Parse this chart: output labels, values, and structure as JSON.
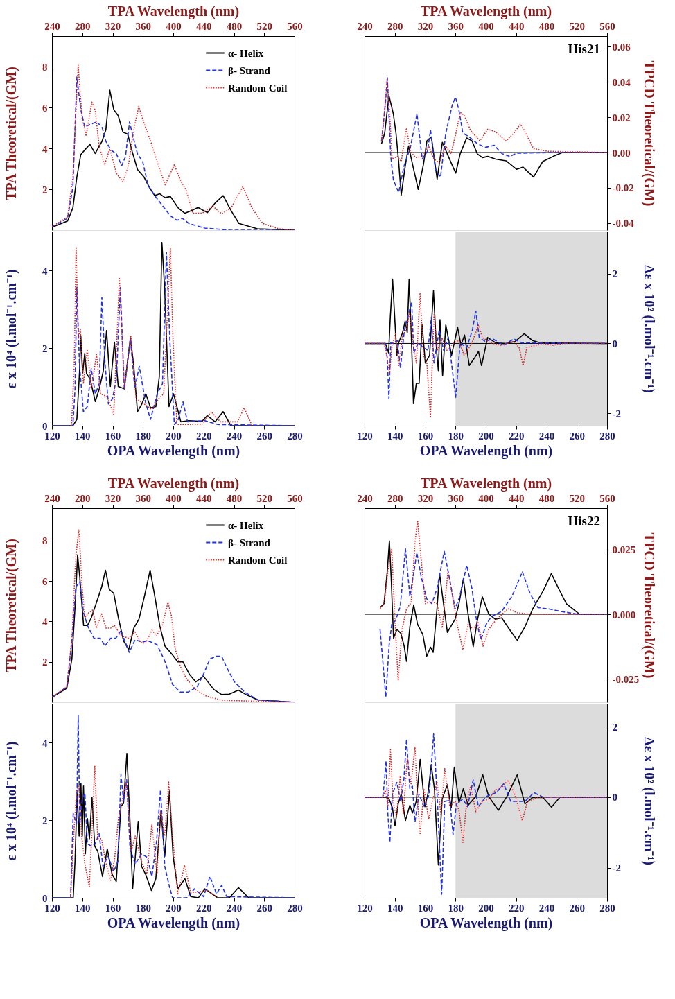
{
  "chart_data": [
    {
      "type": "line",
      "xlabel": "TPA Wavelength (nm)",
      "xlim": [
        240,
        560
      ],
      "xticks": [
        240,
        280,
        320,
        360,
        400,
        440,
        480,
        520,
        560
      ],
      "ylabel": "TPA Theoretical/(GM)",
      "ylim": [
        0,
        9.5
      ],
      "yticks": [
        2,
        4,
        6,
        8
      ],
      "legend": "top right",
      "series": [
        {
          "name": "α- Helix",
          "color": "#000000",
          "line_style": "solid",
          "x": [
            240,
            260.6,
            267.6,
            272.8,
            278,
            285,
            290,
            297,
            306,
            311,
            316.3,
            321.5,
            327.4,
            333.6,
            339.9,
            345.8,
            352.8,
            361.4,
            368.4,
            375.4,
            382.3,
            389.3,
            396.2,
            406.7,
            415.3,
            424,
            432.7,
            444.9,
            455.3,
            465.8,
            476.2,
            486.6,
            511,
            560
          ],
          "values": [
            0.14,
            0.45,
            1.1,
            2.6,
            3.7,
            4.0,
            4.2,
            3.75,
            4.35,
            4.9,
            6.85,
            5.9,
            5.6,
            4.8,
            4.7,
            3.85,
            2.97,
            2.6,
            2.1,
            1.7,
            1.78,
            1.59,
            1.65,
            1.08,
            0.83,
            0.96,
            1.11,
            0.86,
            1.33,
            1.69,
            0.96,
            0.33,
            0.07,
            0
          ]
        },
        {
          "name": "β- Strand",
          "color": "#2233dd",
          "line_style": "dashed",
          "x": [
            240,
            260.6,
            267.6,
            272.8,
            278,
            283.2,
            292,
            299,
            306,
            311,
            318,
            325,
            332,
            337,
            342.3,
            347.5,
            352.8,
            359.7,
            366.7,
            375.4,
            385.8,
            396.2,
            405,
            411.9,
            420.6,
            441.4,
            476,
            560
          ],
          "values": [
            0.17,
            0.58,
            2.1,
            7.5,
            5.9,
            5.05,
            5.2,
            5.3,
            5.05,
            4.35,
            3.92,
            3.73,
            3.16,
            3.6,
            5.3,
            4.5,
            3.73,
            3.35,
            2.2,
            1.7,
            1.2,
            0.7,
            0.48,
            0.58,
            0.33,
            0.1,
            0,
            0
          ]
        },
        {
          "name": "Random Coil",
          "color": "#dd2222",
          "line_style": "dotted",
          "x": [
            240,
            260.6,
            267.6,
            274.5,
            279.7,
            285,
            292.6,
            297,
            302.3,
            309.3,
            316.3,
            325,
            333.6,
            340.6,
            347.5,
            354.5,
            361.4,
            370.1,
            378.8,
            389.3,
            401.4,
            410.1,
            417,
            425.8,
            438,
            451.9,
            464,
            476.2,
            491.8,
            504,
            518,
            538.8,
            560
          ],
          "values": [
            0.17,
            0.64,
            2.6,
            8.07,
            5.5,
            4.6,
            6.27,
            5.87,
            4.1,
            3.2,
            3.98,
            2.78,
            2.37,
            3.1,
            4.86,
            6.06,
            5.24,
            4.36,
            3.35,
            2.22,
            3.2,
            2.4,
            1.96,
            0.83,
            0.83,
            1.18,
            0.8,
            1.08,
            2.13,
            1.08,
            0.33,
            0.07,
            0
          ]
        }
      ]
    },
    {
      "type": "line",
      "xlabel": "TPA Wavelength (nm)",
      "xlim": [
        240,
        560
      ],
      "xticks": [
        240,
        280,
        320,
        360,
        400,
        440,
        480,
        520,
        560
      ],
      "ylabel": "TPCD Theoretical/(GM)",
      "ylim": [
        -0.044,
        0.066
      ],
      "yticks": [
        {
          "value": -0.04,
          "label": "-0.04"
        },
        {
          "value": -0.02,
          "label": "-0.02"
        },
        {
          "value": 0,
          "label": "0.00"
        },
        {
          "value": 0.02,
          "label": "0.02"
        },
        {
          "value": 0.04,
          "label": "0.04"
        },
        {
          "value": 0.06,
          "label": "0.06"
        }
      ],
      "annotations": [
        "His21"
      ],
      "ref_lines": [
        {
          "axis": "y",
          "value": 0,
          "color": "#000000"
        }
      ],
      "series": [
        {
          "color": "#000000",
          "line_style": "solid",
          "x": [
            262.5,
            266.6,
            272.2,
            278,
            281.5,
            285,
            288.4,
            293.6,
            298.1,
            304,
            310.9,
            317.8,
            322.3,
            328.2,
            335.8,
            342.7,
            350.6,
            360.3,
            366.2,
            374.8,
            381.8,
            388.7,
            395.6,
            402.5,
            412.9,
            426.7,
            440.5,
            449.2,
            463,
            475.1,
            488.9,
            501,
            560
          ],
          "values": [
            0.0051,
            0.011,
            0.0322,
            0.0219,
            0.011,
            -0.0051,
            -0.0241,
            -0.008,
            0.0037,
            -0.008,
            -0.0209,
            -0.0066,
            0.0066,
            0.0088,
            -0.0151,
            0.0058,
            -0.0022,
            -0.0117,
            -0.0007,
            0.0083,
            0.0066,
            -0.0007,
            -0.0029,
            -0.0022,
            -0.0037,
            -0.0047,
            -0.0095,
            -0.0083,
            -0.0139,
            -0.0051,
            -0.0022,
            0,
            0
          ]
        },
        {
          "color": "#2233dd",
          "line_style": "dashed",
          "x": [
            262.5,
            267.7,
            270.1,
            274.6,
            278,
            285,
            291.9,
            300.5,
            309.2,
            316.1,
            323,
            327.1,
            333.4,
            340.3,
            347.2,
            355.8,
            360,
            364.5,
            369.7,
            378.3,
            388.7,
            399.1,
            411.1,
            421.5,
            431.9,
            440.5,
            492.4,
            560
          ],
          "values": [
            0.0066,
            0.0285,
            0.0424,
            -0.0022,
            -0.0154,
            -0.0227,
            -0.008,
            0.0029,
            0.0219,
            -0.0037,
            0.0007,
            0.0127,
            -0.0095,
            -0.0139,
            0.011,
            0.027,
            0.0314,
            0.0241,
            0.011,
            0.0088,
            0.0051,
            0.0029,
            0.0041,
            -0.0007,
            -0.0022,
            -0.0004,
            0,
            0
          ]
        },
        {
          "color": "#dd2222",
          "line_style": "dotted",
          "x": [
            262.5,
            266.6,
            269.7,
            272.9,
            276.3,
            283.2,
            288.4,
            295.3,
            300.5,
            307.4,
            316.1,
            324.7,
            331.6,
            338.5,
            347.2,
            354.1,
            361,
            366.2,
            371.4,
            380,
            392.1,
            402.5,
            412.9,
            426.7,
            437.1,
            445.7,
            450.9,
            463,
            482,
            560
          ],
          "values": [
            0.0066,
            0.0241,
            0.0417,
            0.0241,
            -0.0037,
            -0.0022,
            -0.0051,
            0.0139,
            0.0007,
            -0.0029,
            -0.0022,
            0.0037,
            -0.0037,
            -0.0058,
            0.0037,
            -0.0007,
            0.0117,
            0.0227,
            0.0212,
            0.0124,
            0.0066,
            0.0132,
            0.0117,
            0.0066,
            0.011,
            0.0161,
            0.0124,
            0.0022,
            0.0007,
            0
          ]
        }
      ]
    },
    {
      "type": "line",
      "xlabel": "OPA Wavelength (nm)",
      "xlim": [
        120,
        280
      ],
      "xticks": [
        120,
        140,
        160,
        180,
        200,
        220,
        240,
        260,
        280
      ],
      "ylabel": "ε x 10⁴ (l.mol⁻¹.cm⁻¹)",
      "ylim": [
        0,
        5
      ],
      "yticks": [
        0,
        2,
        4
      ],
      "series": [
        {
          "color": "#000000",
          "line_style": "solid",
          "x": [
            120,
            133.8,
            136.4,
            138.1,
            139,
            140.2,
            141.6,
            142.8,
            145.1,
            148.6,
            151.2,
            153.8,
            156,
            158.5,
            161.2,
            163.7,
            167.7,
            171.7,
            173.8,
            176.4,
            179.3,
            181.9,
            185,
            188.5,
            190.8,
            192.5,
            194.3,
            197.2,
            200.2,
            205,
            210.3,
            219,
            222.4,
            227.6,
            232.9,
            238,
            280
          ],
          "values": [
            0,
            0,
            0.16,
            1.34,
            2.32,
            1.34,
            1.86,
            1.34,
            1.21,
            0.62,
            0.95,
            1.4,
            2.45,
            1.01,
            2.15,
            1.01,
            0.95,
            2.25,
            1.6,
            0.36,
            0.56,
            0.82,
            0.46,
            0.49,
            1.27,
            4.72,
            3.56,
            0.49,
            0.82,
            0.1,
            0.13,
            0.11,
            0.26,
            0.1,
            0.36,
            0,
            0
          ]
        },
        {
          "color": "#2233dd",
          "line_style": "dashed",
          "x": [
            120,
            133.8,
            135.2,
            136.4,
            138.1,
            140.7,
            143.3,
            145.9,
            148.6,
            151.2,
            152.9,
            155,
            157.2,
            159.9,
            162.5,
            165.1,
            167.7,
            171.7,
            174.6,
            177.6,
            181.6,
            185,
            189.4,
            192.9,
            195.5,
            197.7,
            200.7,
            203.3,
            206.4,
            209.4,
            220.7,
            229.4,
            280
          ],
          "values": [
            0,
            0,
            0.95,
            3.56,
            1.6,
            0.36,
            0.49,
            1.47,
            0.82,
            1.08,
            3.3,
            1.6,
            0.56,
            0.69,
            1.21,
            3.56,
            0.95,
            2.25,
            0.95,
            1.53,
            0.62,
            0.16,
            0.82,
            1.08,
            4.47,
            2.25,
            0.03,
            0.16,
            0.62,
            0.1,
            0.13,
            0.03,
            0
          ]
        },
        {
          "color": "#dd2222",
          "line_style": "dotted",
          "x": [
            132.9,
            134.7,
            135.9,
            137.3,
            138.7,
            140.7,
            143.3,
            145.9,
            149.4,
            152,
            156.4,
            160.7,
            164.5,
            167.7,
            172,
            175.5,
            180.7,
            185.9,
            190.3,
            193.7,
            198.1,
            199.8,
            202.4,
            218.9,
            225,
            231.1,
            242.4,
            246.8,
            252
          ],
          "values": [
            0,
            1.6,
            4.57,
            2.25,
            2.48,
            1.08,
            1.96,
            0.95,
            1.83,
            0.82,
            0.75,
            0.29,
            3.79,
            0.95,
            2.32,
            0.69,
            0.56,
            0.42,
            0.69,
            0.82,
            4.57,
            2.25,
            0.03,
            0.03,
            0.36,
            0.1,
            0.1,
            0.46,
            0
          ]
        }
      ]
    },
    {
      "type": "line",
      "xlabel": "OPA Wavelength (nm)",
      "xlim": [
        120,
        280
      ],
      "xticks": [
        120,
        140,
        160,
        180,
        200,
        220,
        240,
        260,
        280
      ],
      "ylabel": "Δε x 10² (l.mol⁻¹.cm⁻¹)",
      "ylim": [
        -2.35,
        3.2
      ],
      "yticks": [
        -2,
        0,
        2
      ],
      "bands": [
        {
          "axis": "x",
          "from": 180,
          "to": 280,
          "color": "#dcdcdc"
        }
      ],
      "ref_lines": [
        {
          "axis": "y",
          "value": 0,
          "color": "#000000"
        }
      ],
      "series": [
        {
          "color": "#000000",
          "line_style": "solid",
          "x": [
            120,
            133.8,
            135.9,
            137,
            138.5,
            139.9,
            141.3,
            142.5,
            145.1,
            146.8,
            148.2,
            149.4,
            150.8,
            152.3,
            154.2,
            156,
            158,
            160.1,
            162.9,
            165.5,
            167.5,
            168.7,
            169.8,
            171.5,
            173.6,
            177.4,
            181.4,
            183.6,
            186,
            189.1,
            192.6,
            195.2,
            197.2,
            201.2,
            206.4,
            213.3,
            219.4,
            225.4,
            230.6,
            235.8,
            280
          ],
          "values": [
            0,
            0,
            -0.27,
            0.75,
            1.84,
            0.75,
            -0.34,
            0.02,
            0.31,
            0.64,
            0.31,
            1.84,
            0.31,
            -1.72,
            -1.14,
            -1.14,
            0.53,
            -0.56,
            -0.34,
            1.51,
            -0.2,
            -0.78,
            0.68,
            -0.92,
            0.53,
            -0.34,
            0.46,
            -0.05,
            0.24,
            -0.63,
            -0.41,
            -0.23,
            -0.63,
            0.17,
            0.02,
            0,
            0.06,
            0.28,
            0.09,
            0.02,
            0
          ]
        },
        {
          "color": "#2233dd",
          "line_style": "dashed",
          "x": [
            120,
            133.8,
            135,
            136.1,
            137.3,
            139,
            141.6,
            143.7,
            146.3,
            148.5,
            151.1,
            152.5,
            155.4,
            158.9,
            161.8,
            164.1,
            165.8,
            169.3,
            172.2,
            175.3,
            178.4,
            180.1,
            183.1,
            187.4,
            191.2,
            193.4,
            195.7,
            199.5,
            204.7,
            211.6,
            218.5,
            223.7,
            280
          ],
          "values": [
            0,
            0,
            -0.41,
            -1.58,
            0.02,
            0,
            0.09,
            -0.71,
            0.39,
            0.75,
            1.19,
            -0.27,
            0.02,
            -0.12,
            -0.2,
            0.75,
            -0.56,
            0.39,
            -0.2,
            0.17,
            -0.92,
            -1.54,
            0.02,
            -0.12,
            0.39,
            0.93,
            0.17,
            0.06,
            0.13,
            -0.05,
            0.13,
            0.02,
            0
          ]
        },
        {
          "color": "#dd2222",
          "line_style": "dotted",
          "x": [
            120,
            133,
            134.7,
            136.4,
            138.2,
            140.4,
            142.5,
            145.1,
            147.7,
            149.7,
            152,
            154.2,
            156.6,
            158.9,
            161.1,
            163.5,
            165.8,
            168,
            171,
            174.4,
            178.8,
            182.2,
            185.7,
            190.9,
            195.2,
            197.8,
            202.9,
            209.9,
            218.5,
            222,
            224.6,
            227.1,
            237.5,
            244.4,
            251.3,
            280
          ],
          "values": [
            0,
            0,
            -0.34,
            -0.85,
            -0.05,
            0.28,
            -0.63,
            0.24,
            0.39,
            0.89,
            0.02,
            -0.56,
            1.44,
            -0.34,
            -0.56,
            -2.09,
            0.82,
            -0.2,
            0.17,
            -0.2,
            0.02,
            0.09,
            -0.34,
            0.02,
            0.53,
            0.17,
            0.02,
            -0.05,
            0.06,
            -0.12,
            -0.63,
            -0.12,
            0,
            -0.05,
            0,
            0
          ]
        }
      ]
    },
    {
      "type": "line",
      "xlabel": "TPA Wavelength (nm)",
      "xlim": [
        240,
        560
      ],
      "xticks": [
        240,
        280,
        320,
        360,
        400,
        440,
        480,
        520,
        560
      ],
      "ylabel": "TPA Theoretical/(GM)",
      "ylim": [
        0,
        9.6
      ],
      "yticks": [
        2,
        4,
        6,
        8
      ],
      "legend": "top right",
      "series": [
        {
          "name": "α- Helix",
          "color": "#000000",
          "line_style": "solid",
          "x": [
            240,
            259.5,
            266.3,
            270.8,
            273.8,
            276.6,
            281.7,
            286.8,
            291.9,
            298.7,
            305.5,
            310.6,
            315.7,
            321.5,
            327.6,
            334.4,
            341.2,
            348,
            354.8,
            361.7,
            369.5,
            375.3,
            382.1,
            388.9,
            399.1,
            405.9,
            412.7,
            421.2,
            429.7,
            439.9,
            453.6,
            463.8,
            474,
            485.9,
            496.1,
            511.4,
            560
          ],
          "values": [
            0.25,
            0.69,
            2.15,
            4.94,
            7.29,
            6.21,
            3.8,
            3.8,
            4.18,
            4.94,
            5.7,
            6.53,
            5.58,
            5.39,
            4.18,
            3.04,
            2.6,
            3.67,
            4.12,
            5.2,
            6.53,
            5.32,
            3.8,
            2.79,
            2.34,
            2,
            2,
            1.39,
            1.01,
            1.29,
            0.63,
            0.38,
            0.4,
            0.6,
            0.38,
            0.12,
            0
          ]
        },
        {
          "name": "β- Strand",
          "color": "#2233dd",
          "line_style": "dashed",
          "x": [
            240,
            259.5,
            266.3,
            271.4,
            276.6,
            281.7,
            286.8,
            295.3,
            303.8,
            309.9,
            317.4,
            324.2,
            331,
            336.1,
            341.9,
            349.7,
            358.3,
            366.8,
            378.7,
            388.9,
            399.1,
            409.3,
            419.5,
            431.4,
            439.9,
            448.5,
            457,
            463.8,
            470.6,
            480.8,
            494.4,
            511.4,
            560
          ],
          "values": [
            0.25,
            0.76,
            3.04,
            5.7,
            5.96,
            4.43,
            3.8,
            3.17,
            3.17,
            2.79,
            3.17,
            3.17,
            3.55,
            3.04,
            2.47,
            3.1,
            2.98,
            3.04,
            2.85,
            2.03,
            0.88,
            0.5,
            0.5,
            0.76,
            1.39,
            2.15,
            2.28,
            2.28,
            1.71,
            1.01,
            0.5,
            0.12,
            0
          ]
        },
        {
          "name": "Random Coil",
          "color": "#dd2222",
          "line_style": "dotted",
          "x": [
            240,
            259.5,
            266.3,
            271.4,
            275.5,
            280,
            283.4,
            288.5,
            293.6,
            298.7,
            305.5,
            311.3,
            317.4,
            322.5,
            331,
            341.2,
            349.7,
            356.5,
            363.4,
            371.9,
            378,
            385.5,
            393,
            397.4,
            402.5,
            409.3,
            417.8,
            429.7,
            443.4,
            463.8,
            560
          ],
          "values": [
            0.25,
            0.76,
            3.17,
            7.22,
            8.53,
            5.58,
            4.18,
            4.43,
            4.56,
            3.67,
            4.37,
            3.67,
            3.67,
            3.8,
            3.29,
            3.17,
            3.48,
            2.98,
            2.91,
            3.57,
            3.29,
            3.8,
            4.94,
            4.31,
            2.66,
            1.77,
            1.14,
            0.63,
            0.31,
            0.1,
            0
          ]
        }
      ]
    },
    {
      "type": "line",
      "xlabel": "TPA Wavelength (nm)",
      "xlim": [
        240,
        560
      ],
      "xticks": [
        240,
        280,
        320,
        360,
        400,
        440,
        480,
        520,
        560
      ],
      "ylabel": "TPCD Theoretical/(GM)",
      "ylim": [
        -0.034,
        0.041
      ],
      "yticks": [
        {
          "value": -0.025,
          "label": "-0.025"
        },
        {
          "value": 0,
          "label": "0.000"
        },
        {
          "value": 0.025,
          "label": "0.025"
        }
      ],
      "annotations": [
        "His22"
      ],
      "ref_lines": [
        {
          "axis": "y",
          "value": 0,
          "color": "#000000"
        }
      ],
      "series": [
        {
          "color": "#000000",
          "line_style": "solid",
          "x": [
            260.5,
            265.7,
            270.1,
            272.8,
            275.2,
            278.3,
            282.7,
            287.8,
            292.3,
            295.4,
            299.8,
            304.9,
            310,
            316.9,
            322,
            327.1,
            330.5,
            335.6,
            339,
            344.2,
            349.3,
            359.5,
            364.6,
            370.4,
            376.6,
            383.4,
            388.5,
            395.4,
            403.9,
            412.4,
            420.9,
            431.2,
            441.4,
            451.7,
            461.9,
            475.6,
            486.5,
            496,
            506.3,
            523.3,
            560
          ],
          "values": [
            0.0026,
            0.0041,
            0.0169,
            0.0283,
            0.0139,
            -0.0093,
            -0.0058,
            -0.0073,
            -0.0123,
            -0.0182,
            -0.0048,
            0.0036,
            -0.0039,
            -0.0078,
            -0.0162,
            -0.0127,
            -0.0147,
            0.0021,
            0.0157,
            0.0041,
            -0.007,
            -0.0019,
            0.0041,
            0.0137,
            0.0001,
            -0.0125,
            -0.0029,
            0.0068,
            0.0001,
            -0.0019,
            -0.0014,
            -0.0058,
            -0.01,
            -0.0048,
            0.0021,
            0.009,
            0.0157,
            0.01,
            0.0041,
            0.0001,
            0
          ]
        },
        {
          "color": "#2233dd",
          "line_style": "dashed",
          "x": [
            260.5,
            264,
            268.1,
            272.5,
            275.9,
            281,
            287.2,
            294,
            299.8,
            304.9,
            309,
            314.5,
            322,
            328.8,
            335.6,
            345.2,
            352.7,
            359.5,
            365.7,
            374.9,
            381.7,
            388.5,
            393.7,
            400.5,
            407.3,
            420.9,
            434.6,
            448.3,
            458.5,
            468.7,
            482.4,
            499.5,
            519.9,
            560
          ],
          "values": [
            -0.0058,
            -0.0177,
            -0.032,
            -0.0118,
            -0.0039,
            -0.0024,
            0.0031,
            0.0253,
            0.007,
            0.0159,
            0.0238,
            0.0149,
            0.006,
            0.0041,
            0.01,
            0.0243,
            0.0129,
            0.0021,
            0.007,
            0.0189,
            0.01,
            -0.0039,
            -0.0098,
            -0.0039,
            -0.0009,
            0.0011,
            0.007,
            0.0164,
            0.008,
            0.0026,
            0.0021,
            0.0011,
            0.0001,
            0
          ]
        },
        {
          "color": "#dd2222",
          "line_style": "dotted",
          "x": [
            260.5,
            265.7,
            270.8,
            275.9,
            280.3,
            284.4,
            289.6,
            295.4,
            301.5,
            306.6,
            310,
            314.5,
            320.3,
            328.1,
            335.6,
            342.5,
            350,
            356.1,
            362.9,
            369.8,
            376.6,
            383.4,
            389.6,
            396.4,
            403.9,
            414.1,
            429.5,
            441.4,
            458.5,
            560
          ],
          "values": [
            0.0021,
            0.0041,
            0.0164,
            0.0253,
            -0.0029,
            -0.0256,
            -0.0058,
            0.0021,
            0.0045,
            0.0278,
            0.0362,
            0.0218,
            0.0041,
            0.005,
            0.0041,
            -0.0053,
            0.0164,
            0.007,
            -0.0048,
            -0.0137,
            -0.0039,
            -0.0058,
            -0.0029,
            -0.0123,
            -0.0058,
            -0.0019,
            0.0021,
            0.0006,
            0.0001,
            0
          ]
        }
      ]
    },
    {
      "type": "line",
      "xlabel": "OPA Wavelength (nm)",
      "xlim": [
        120,
        280
      ],
      "xticks": [
        120,
        140,
        160,
        180,
        200,
        220,
        240,
        260,
        280
      ],
      "ylabel": "ε x 10⁴ (l.mol⁻¹.cm⁻¹)",
      "ylim": [
        0,
        5
      ],
      "yticks": [
        0,
        2,
        4
      ],
      "series": [
        {
          "color": "#000000",
          "line_style": "solid",
          "x": [
            120,
            134,
            135.2,
            136.6,
            137.9,
            139.1,
            140,
            140.8,
            142,
            143.4,
            144.7,
            146.4,
            148.2,
            150.2,
            153.3,
            156.5,
            159.6,
            162.4,
            165.5,
            167.2,
            169.4,
            171.5,
            173.2,
            176.9,
            179.1,
            181.7,
            185.6,
            188.5,
            191.9,
            194.4,
            197.5,
            199.9,
            203,
            207.7,
            211.5,
            216.6,
            220.8,
            229.3,
            237,
            243,
            249.8,
            280
          ],
          "values": [
            0,
            0,
            0.94,
            2.69,
            1.59,
            2.94,
            1.59,
            2.88,
            1.13,
            2.04,
            1.52,
            2.59,
            1.33,
            1.2,
            0.55,
            1.26,
            0.61,
            0.42,
            2.36,
            2.43,
            3.72,
            1.91,
            0.23,
            1.97,
            0.81,
            0.61,
            0.19,
            0.49,
            2.23,
            1.07,
            2.75,
            1.07,
            0.23,
            0.49,
            0.03,
            0,
            0.23,
            0,
            0,
            0.26,
            0,
            0
          ]
        },
        {
          "color": "#2233dd",
          "line_style": "dashed",
          "x": [
            120,
            132.3,
            134,
            136.2,
            137.3,
            138.3,
            140,
            141.7,
            143.4,
            145.9,
            148.5,
            151.1,
            153.6,
            157,
            160.7,
            163.5,
            165.5,
            167.2,
            169.3,
            171.5,
            174.9,
            179.1,
            182.9,
            185.9,
            189,
            191.6,
            194.4,
            197,
            199.5,
            208.9,
            214,
            220,
            224.2,
            228.5,
            231.9,
            235.3,
            280
          ],
          "values": [
            0,
            0,
            2.17,
            1.91,
            4.69,
            1.91,
            2.56,
            2.69,
            1.39,
            1.33,
            1.39,
            1.65,
            0.81,
            1.07,
            0.68,
            0.94,
            3.17,
            2.49,
            3.04,
            1.26,
            0.87,
            1.13,
            1.04,
            0.55,
            1.46,
            2.78,
            0.81,
            0.36,
            0,
            0,
            0.23,
            0.03,
            0.55,
            0.1,
            0.32,
            0.03,
            0
          ]
        },
        {
          "color": "#dd2222",
          "line_style": "dotted",
          "x": [
            132.3,
            134.5,
            136.2,
            137.9,
            139.6,
            141.7,
            144.6,
            146.4,
            148.2,
            150.2,
            152.7,
            155.3,
            158.7,
            161.3,
            163.8,
            166.4,
            168.9,
            172.3,
            174.9,
            179.1,
            182.5,
            185.9,
            189.3,
            191.6,
            194.4,
            197,
            199.5,
            203,
            207.5,
            211.5,
            218.3,
            222.5,
            229.3
          ],
          "values": [
            0,
            1.72,
            2.75,
            2.88,
            1.59,
            0.87,
            0.29,
            1.72,
            3.4,
            1.52,
            1.52,
            0.94,
            0.45,
            1,
            2.04,
            2.52,
            2.98,
            1.2,
            1.59,
            0.94,
            0.61,
            1.88,
            0.61,
            2.23,
            1.59,
            2.98,
            1.59,
            0.1,
            0.84,
            0.13,
            0.16,
            0.19,
            0
          ]
        }
      ]
    },
    {
      "type": "line",
      "xlabel": "OPA Wavelength (nm)",
      "xlim": [
        120,
        280
      ],
      "xticks": [
        120,
        140,
        160,
        180,
        200,
        220,
        240,
        260,
        280
      ],
      "ylabel": "Δε x 10² (l.mol⁻¹.cm⁻¹)",
      "ylim": [
        -2.85,
        2.65
      ],
      "yticks": [
        -2,
        0,
        2
      ],
      "bands": [
        {
          "axis": "x",
          "from": 180,
          "to": 280,
          "color": "#dcdcdc"
        }
      ],
      "ref_lines": [
        {
          "axis": "y",
          "value": 0,
          "color": "#000000"
        }
      ],
      "series": [
        {
          "color": "#000000",
          "line_style": "solid",
          "x": [
            120,
            134.5,
            136.2,
            138.4,
            140.1,
            142.2,
            144.2,
            147,
            149.9,
            151.6,
            154.1,
            156.7,
            159.8,
            161.8,
            164,
            166.1,
            168.7,
            171.2,
            174.6,
            177.2,
            179.2,
            182.3,
            185.2,
            188.3,
            193.4,
            198,
            201.9,
            208.3,
            213.9,
            220.7,
            225.8,
            230.9,
            237.8,
            243.3,
            248.9,
            280
          ],
          "values": [
            0,
            0,
            -0.05,
            -0.3,
            -0.81,
            -0.19,
            0.09,
            -0.66,
            -0.23,
            -0.45,
            -0.12,
            1.07,
            -0.27,
            0.09,
            0.92,
            0.24,
            -1.92,
            -0.05,
            0.35,
            -0.3,
            0.85,
            -0.16,
            0.24,
            -0.23,
            0.02,
            0.63,
            0.02,
            -0.37,
            0.02,
            0.63,
            -0.19,
            -0.01,
            -0.01,
            -0.28,
            0,
            0
          ]
        },
        {
          "color": "#2233dd",
          "line_style": "dashed",
          "x": [
            120,
            132,
            133.3,
            134.2,
            135.4,
            136.7,
            138.4,
            141.3,
            143.9,
            146,
            147.7,
            149.9,
            151.6,
            153.3,
            155.9,
            159.3,
            162.7,
            165.6,
            168.1,
            170.9,
            172.9,
            176.3,
            178.4,
            180.6,
            184.9,
            187.9,
            191.7,
            195.1,
            200.2,
            207,
            211.8,
            216.5,
            225.8,
            231.8,
            237.8,
            280
          ],
          "values": [
            0,
            0,
            0.53,
            1.03,
            -0.48,
            -1.28,
            0.09,
            0.42,
            -0.12,
            0.53,
            1.64,
            0.24,
            0.31,
            -0.7,
            0.09,
            -0.27,
            0.09,
            1.79,
            -0.12,
            -2.75,
            -0.12,
            -0.09,
            -1.06,
            -0.19,
            -0.05,
            -0.27,
            0.49,
            -0.27,
            0.02,
            0.13,
            0.38,
            -0.12,
            -0.12,
            0.13,
            0,
            0
          ]
        },
        {
          "color": "#dd2222",
          "line_style": "dotted",
          "x": [
            120,
            132,
            133.7,
            135.4,
            137.1,
            138.8,
            141,
            143.6,
            145.6,
            148.2,
            150.7,
            153.3,
            155,
            156.7,
            159.3,
            162.3,
            164.4,
            167.8,
            170.4,
            172.9,
            176.3,
            179.8,
            182.3,
            184.9,
            187.4,
            190,
            193.4,
            197.7,
            201.9,
            207,
            211.3,
            214.7,
            219,
            224.1,
            227.5,
            234.4,
            280
          ],
          "values": [
            0,
            0,
            0.2,
            -0.27,
            1.35,
            -0.12,
            -0.55,
            0.6,
            -0.48,
            1.1,
            0.38,
            1.43,
            -0.12,
            -1.06,
            0.24,
            -0.63,
            -0.19,
            0.45,
            -0.48,
            0.81,
            -0.27,
            -0.12,
            -0.37,
            -1.28,
            -0.12,
            0.31,
            -0.41,
            -0.12,
            -0.05,
            0.24,
            0.31,
            0.49,
            0.09,
            -0.66,
            -0.12,
            0,
            0
          ]
        }
      ]
    }
  ]
}
